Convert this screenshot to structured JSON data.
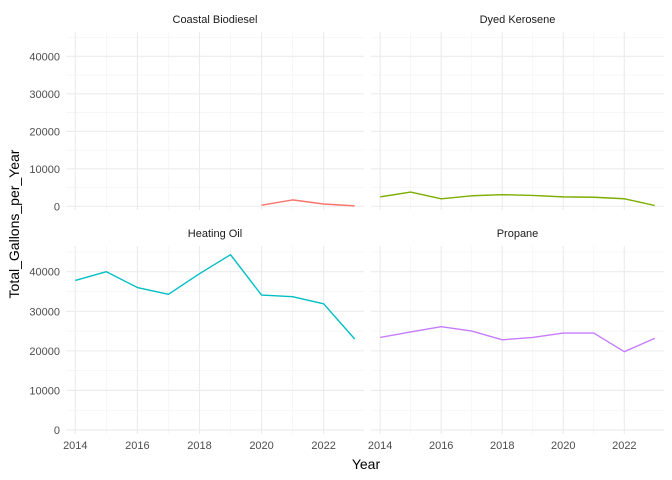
{
  "chart_data": {
    "type": "line",
    "facet_layout": "2x2",
    "xlabel": "Year",
    "ylabel": "Total_Gallons_per_Year",
    "xlim": [
      2013.7,
      2023.3
    ],
    "ylim": [
      -1000,
      46500
    ],
    "x_ticks": [
      2014,
      2016,
      2018,
      2020,
      2022
    ],
    "y_ticks": [
      0,
      10000,
      20000,
      30000,
      40000
    ],
    "grid": true,
    "legend": "none",
    "panels": [
      {
        "name": "Coastal Biodiesel",
        "color": "#F8766D",
        "x": [
          2020,
          2021,
          2022,
          2023
        ],
        "y": [
          300,
          1700,
          600,
          100
        ]
      },
      {
        "name": "Dyed Kerosene",
        "color": "#7CAE00",
        "x": [
          2014,
          2015,
          2016,
          2017,
          2018,
          2019,
          2020,
          2021,
          2022,
          2023
        ],
        "y": [
          2500,
          3800,
          2000,
          2800,
          3100,
          2900,
          2500,
          2400,
          2000,
          200
        ]
      },
      {
        "name": "Heating Oil",
        "color": "#00BFC4",
        "x": [
          2014,
          2015,
          2016,
          2017,
          2018,
          2019,
          2020,
          2021,
          2022,
          2023
        ],
        "y": [
          37800,
          40000,
          36000,
          34300,
          39500,
          44300,
          34100,
          33700,
          31900,
          23000
        ]
      },
      {
        "name": "Propane",
        "color": "#C77CFF",
        "x": [
          2014,
          2015,
          2016,
          2017,
          2018,
          2019,
          2020,
          2021,
          2022,
          2023
        ],
        "y": [
          23400,
          24800,
          26100,
          25000,
          22800,
          23400,
          24500,
          24500,
          19800,
          23200
        ]
      }
    ]
  }
}
